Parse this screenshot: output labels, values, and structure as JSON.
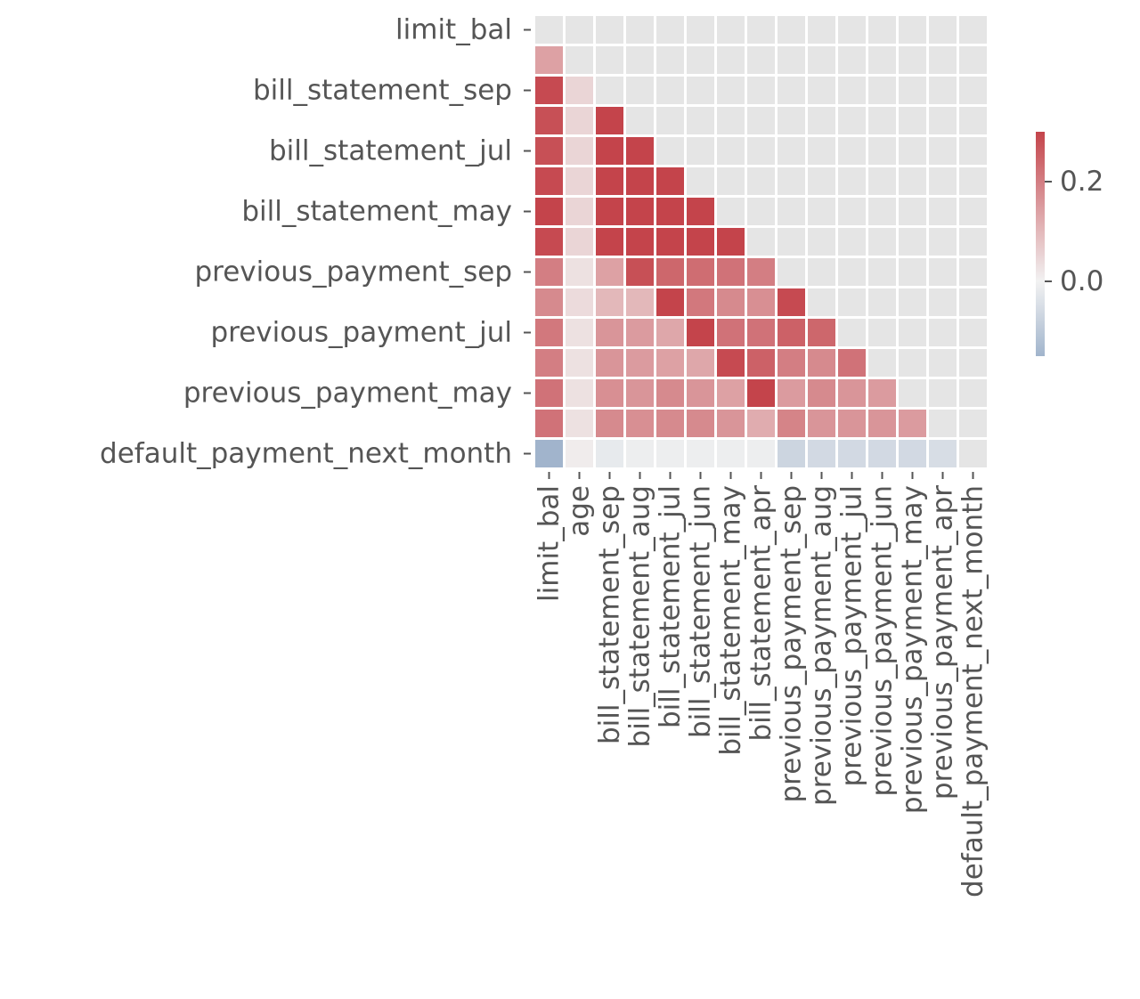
{
  "chart_data": {
    "type": "heatmap",
    "title": "",
    "xlabel": "",
    "ylabel": "",
    "variables": [
      "limit_bal",
      "age",
      "bill_statement_sep",
      "bill_statement_aug",
      "bill_statement_jul",
      "bill_statement_jun",
      "bill_statement_may",
      "bill_statement_apr",
      "previous_payment_sep",
      "previous_payment_aug",
      "previous_payment_jul",
      "previous_payment_jun",
      "previous_payment_may",
      "previous_payment_apr",
      "default_payment_next_month"
    ],
    "y_tick_labels": [
      "limit_bal",
      "bill_statement_sep",
      "bill_statement_jul",
      "bill_statement_may",
      "previous_payment_sep",
      "previous_payment_jul",
      "previous_payment_may",
      "default_payment_next_month"
    ],
    "mask": "upper_triangle_including_diagonal",
    "lower_triangle_values": [
      [],
      [
        0.14
      ],
      [
        0.29,
        0.05
      ],
      [
        0.28,
        0.05,
        0.95
      ],
      [
        0.28,
        0.05,
        0.89,
        0.93
      ],
      [
        0.29,
        0.05,
        0.86,
        0.89,
        0.92
      ],
      [
        0.3,
        0.05,
        0.83,
        0.86,
        0.88,
        0.94
      ],
      [
        0.29,
        0.05,
        0.8,
        0.83,
        0.85,
        0.9,
        0.95
      ],
      [
        0.2,
        0.03,
        0.14,
        0.28,
        0.24,
        0.23,
        0.22,
        0.2
      ],
      [
        0.18,
        0.04,
        0.1,
        0.1,
        0.32,
        0.21,
        0.18,
        0.17,
        0.29
      ],
      [
        0.21,
        0.03,
        0.16,
        0.15,
        0.13,
        0.3,
        0.22,
        0.22,
        0.25,
        0.24
      ],
      [
        0.2,
        0.03,
        0.16,
        0.15,
        0.14,
        0.13,
        0.29,
        0.25,
        0.2,
        0.18,
        0.22
      ],
      [
        0.22,
        0.03,
        0.17,
        0.16,
        0.18,
        0.16,
        0.14,
        0.31,
        0.15,
        0.18,
        0.16,
        0.15
      ],
      [
        0.22,
        0.03,
        0.18,
        0.17,
        0.18,
        0.18,
        0.16,
        0.12,
        0.19,
        0.16,
        0.16,
        0.16,
        0.15
      ],
      [
        -0.15,
        0.01,
        -0.02,
        -0.01,
        -0.01,
        -0.01,
        -0.01,
        -0.01,
        -0.07,
        -0.06,
        -0.06,
        -0.06,
        -0.06,
        -0.05
      ]
    ],
    "colorbar": {
      "vmin": -0.15,
      "vmax": 0.3,
      "ticks": [
        0.0,
        0.2
      ],
      "tick_labels": [
        "0.0",
        "0.2"
      ],
      "low_color": "#a1b4cc",
      "mid_color": "#f2f2f2",
      "high_color": "#c4444b"
    },
    "masked_cell_color": "#e5e5e5",
    "grid_line_color": "#ffffff",
    "tick_color": "#555555"
  }
}
